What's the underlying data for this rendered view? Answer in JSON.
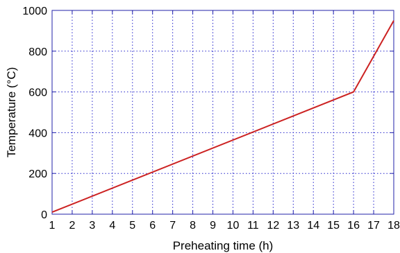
{
  "chart_data": {
    "type": "line",
    "title": "",
    "xlabel": "Preheating time (h)",
    "ylabel": "Temperature (°C)",
    "xlim": [
      1,
      18
    ],
    "ylim": [
      0,
      1000
    ],
    "x_ticks": [
      "1",
      "2",
      "3",
      "4",
      "5",
      "6",
      "7",
      "8",
      "9",
      "10",
      "11",
      "12",
      "13",
      "14",
      "15",
      "16",
      "17",
      "18"
    ],
    "y_ticks": [
      "0",
      "200",
      "400",
      "600",
      "800",
      "1000"
    ],
    "grid": true,
    "legend": "none",
    "colors": {
      "line": "#cc2222",
      "grid": "#2222cc",
      "frame": "#2222aa"
    },
    "series": [
      {
        "x": [
          1,
          16,
          18
        ],
        "y": [
          10,
          600,
          950
        ]
      }
    ]
  }
}
